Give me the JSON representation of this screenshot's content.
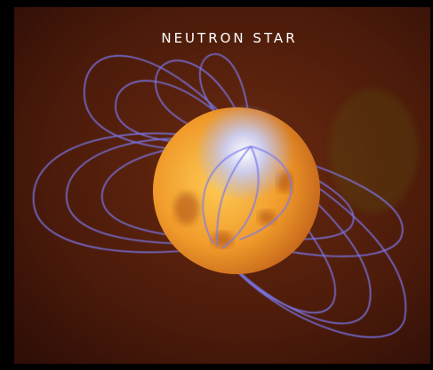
{
  "title": "NEUTRON STAR"
}
